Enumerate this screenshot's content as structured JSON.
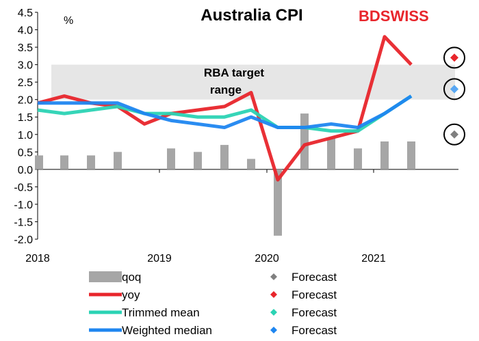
{
  "chart_data": {
    "type": "bar+line",
    "title": "Australia CPI",
    "unit_label": "%",
    "brand": {
      "prefix": "BD",
      "suffix": "SWISS"
    },
    "annotation": {
      "line1": "RBA target",
      "line2": "range"
    },
    "target_band": [
      2.0,
      3.0
    ],
    "ylim": [
      -2.0,
      4.5
    ],
    "yticks": [
      "4.5",
      "4.0",
      "3.5",
      "3.0",
      "2.5",
      "2.0",
      "1.5",
      "1.0",
      "0.5",
      "0.0",
      "-0.5",
      "-1.0",
      "-1.5",
      "-2.0"
    ],
    "ytick_values": [
      4.5,
      4.0,
      3.5,
      3.0,
      2.5,
      2.0,
      1.5,
      1.0,
      0.5,
      0.0,
      -0.5,
      -1.0,
      -1.5,
      -2.0
    ],
    "x_year_labels": [
      "2018",
      "2019",
      "2020",
      "2021"
    ],
    "quarters": [
      "2018Q1",
      "2018Q2",
      "2018Q3",
      "2018Q4",
      "2019Q1",
      "2019Q2",
      "2019Q3",
      "2019Q4",
      "2020Q1",
      "2020Q2",
      "2020Q3",
      "2020Q4",
      "2021Q1",
      "2021Q2",
      "2021Q3"
    ],
    "series": [
      {
        "name": "qoq",
        "kind": "bar",
        "color": "#a6a6a6",
        "values": [
          0.4,
          0.4,
          0.4,
          0.5,
          0.0,
          0.6,
          0.5,
          0.7,
          0.3,
          -1.9,
          1.6,
          0.9,
          0.6,
          0.8,
          0.8
        ]
      },
      {
        "name": "yoy",
        "kind": "line",
        "color": "#e8252b",
        "values": [
          1.9,
          2.1,
          1.9,
          1.8,
          1.3,
          1.6,
          1.7,
          1.8,
          2.2,
          -0.3,
          0.7,
          0.9,
          1.1,
          3.8,
          3.0
        ]
      },
      {
        "name": "Trimmed mean",
        "kind": "line",
        "color": "#2bd3b4",
        "values": [
          1.7,
          1.6,
          1.7,
          1.8,
          1.6,
          1.6,
          1.5,
          1.5,
          1.7,
          1.2,
          1.2,
          1.1,
          1.1,
          1.6,
          2.1
        ]
      },
      {
        "name": "Weighted median",
        "kind": "line",
        "color": "#1f86f0",
        "values": [
          1.9,
          1.9,
          1.9,
          1.9,
          1.6,
          1.4,
          1.3,
          1.2,
          1.5,
          1.2,
          1.2,
          1.3,
          1.2,
          1.6,
          2.1
        ]
      }
    ],
    "forecasts": [
      {
        "series": "qoq",
        "value": 1.0,
        "color": "#808080",
        "circled": true
      },
      {
        "series": "yoy",
        "value": 3.2,
        "color": "#e8252b",
        "circled": true
      },
      {
        "series": "Trimmed mean",
        "value": 2.3,
        "color": "#2bd3b4",
        "circled": false
      },
      {
        "series": "Weighted median",
        "value": 2.3,
        "color": "#5aa7f5",
        "circled": true
      }
    ],
    "legend": [
      {
        "label": "qoq",
        "type": "bar",
        "color": "#a6a6a6",
        "forecast_label": "Forecast",
        "forecast_color": "#808080"
      },
      {
        "label": "yoy",
        "type": "line",
        "color": "#e8252b",
        "forecast_label": "Forecast",
        "forecast_color": "#e8252b"
      },
      {
        "label": "Trimmed mean",
        "type": "line",
        "color": "#2bd3b4",
        "forecast_label": "Forecast",
        "forecast_color": "#2bd3b4"
      },
      {
        "label": "Weighted median",
        "type": "line",
        "color": "#1f86f0",
        "forecast_label": "Forecast",
        "forecast_color": "#1f86f0"
      }
    ]
  }
}
